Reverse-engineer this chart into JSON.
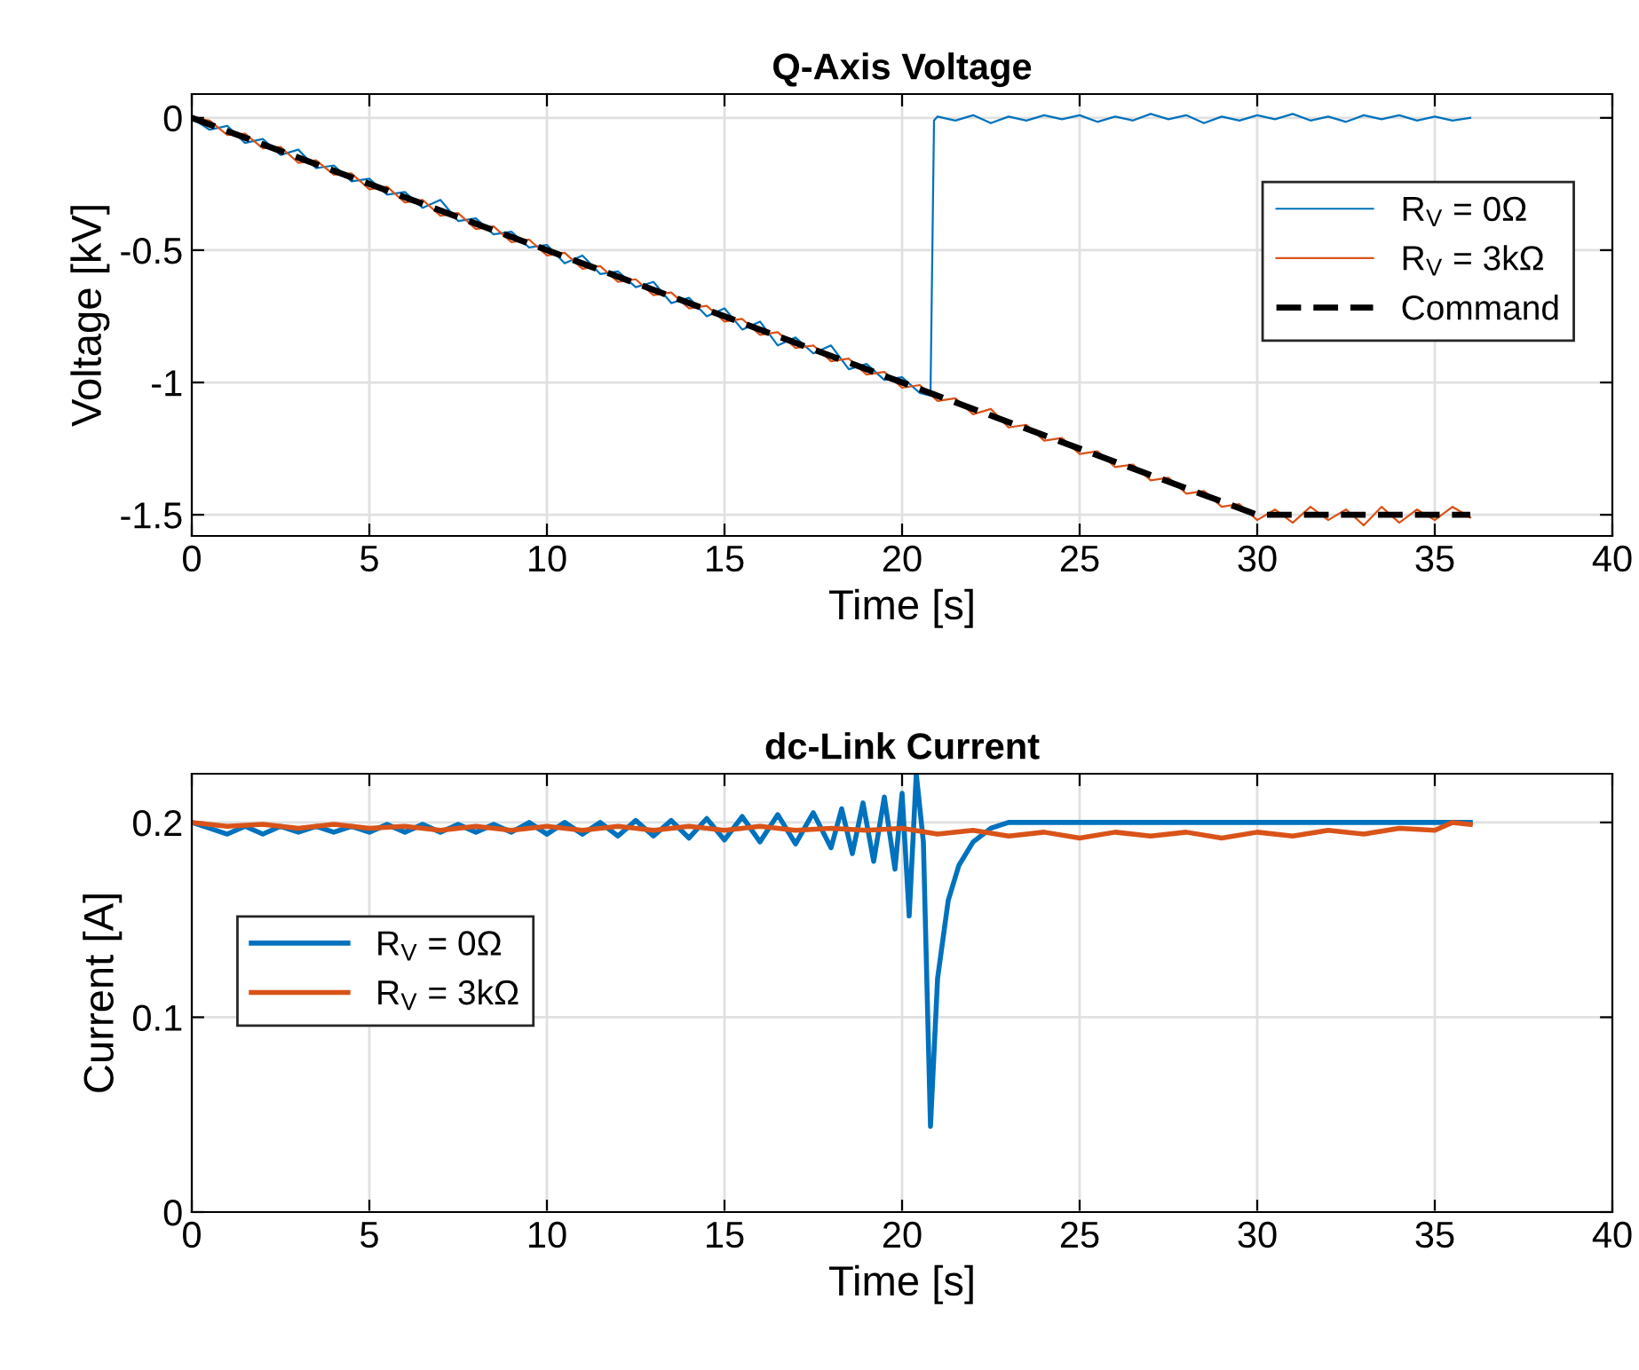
{
  "chart_data": [
    {
      "type": "line",
      "title": "Q-Axis Voltage",
      "xlabel": "Time [s]",
      "ylabel": "Voltage [kV]",
      "xlim": [
        0,
        40
      ],
      "xticks": [
        0,
        5,
        10,
        15,
        20,
        25,
        30,
        35,
        40
      ],
      "ylim": [
        -1.58,
        0.09
      ],
      "yticks": [
        -1.5,
        -1,
        -0.5,
        0
      ],
      "grid": true,
      "legend": "top right",
      "series": [
        {
          "name": "R$_{V}$ = 0Ω",
          "color": "#0072bd",
          "x": [
            0,
            0.5,
            1,
            1.5,
            2,
            2.5,
            3,
            3.5,
            4,
            4.5,
            5,
            5.5,
            6,
            6.5,
            7,
            7.5,
            8,
            8.5,
            9,
            9.5,
            10,
            10.5,
            11,
            11.5,
            12,
            12.5,
            13,
            13.5,
            14,
            14.5,
            15,
            15.5,
            16,
            16.5,
            17,
            17.5,
            18,
            18.5,
            19,
            19.5,
            20,
            20.5,
            20.8,
            20.9,
            21,
            21.5,
            22,
            22.5,
            23,
            23.5,
            24,
            24.5,
            25,
            25.5,
            26,
            26.5,
            27,
            27.5,
            28,
            28.5,
            29,
            29.5,
            30,
            30.5,
            31,
            31.5,
            32,
            32.5,
            33,
            33.5,
            34,
            34.5,
            35,
            35.5,
            36
          ],
          "values": [
            0,
            -0.045,
            -0.03,
            -0.095,
            -0.08,
            -0.14,
            -0.12,
            -0.19,
            -0.18,
            -0.24,
            -0.23,
            -0.29,
            -0.28,
            -0.34,
            -0.31,
            -0.39,
            -0.38,
            -0.44,
            -0.43,
            -0.49,
            -0.48,
            -0.55,
            -0.52,
            -0.59,
            -0.58,
            -0.64,
            -0.62,
            -0.7,
            -0.68,
            -0.75,
            -0.72,
            -0.8,
            -0.77,
            -0.86,
            -0.83,
            -0.89,
            -0.86,
            -0.95,
            -0.93,
            -0.99,
            -0.98,
            -1.04,
            -1.05,
            -0.01,
            0.005,
            -0.01,
            0.01,
            -0.02,
            0.005,
            -0.01,
            0.01,
            -0.005,
            0.01,
            -0.015,
            0.005,
            -0.01,
            0.015,
            -0.005,
            0.01,
            -0.02,
            0.005,
            -0.01,
            0.01,
            -0.005,
            0.015,
            -0.01,
            0.005,
            -0.015,
            0.01,
            -0.005,
            0.01,
            -0.01,
            0.005,
            -0.01,
            0
          ]
        },
        {
          "name": "R$_{V}$ = 3kΩ",
          "color": "#d95319",
          "x": [
            0,
            0.5,
            1,
            1.5,
            2,
            2.5,
            3,
            3.5,
            4,
            4.5,
            5,
            5.5,
            6,
            6.5,
            7,
            7.5,
            8,
            8.5,
            9,
            9.5,
            10,
            10.5,
            11,
            11.5,
            12,
            12.5,
            13,
            13.5,
            14,
            14.5,
            15,
            15.5,
            16,
            16.5,
            17,
            17.5,
            18,
            18.5,
            19,
            19.5,
            20,
            20.5,
            21,
            21.5,
            22,
            22.5,
            23,
            23.5,
            24,
            24.5,
            25,
            25.5,
            26,
            26.5,
            27,
            27.5,
            28,
            28.5,
            29,
            29.5,
            30,
            30.5,
            31,
            31.5,
            32,
            32.5,
            33,
            33.5,
            34,
            34.5,
            35,
            35.5,
            36
          ],
          "values": [
            0,
            -0.01,
            -0.065,
            -0.06,
            -0.115,
            -0.11,
            -0.17,
            -0.16,
            -0.215,
            -0.21,
            -0.27,
            -0.26,
            -0.32,
            -0.31,
            -0.37,
            -0.36,
            -0.42,
            -0.41,
            -0.47,
            -0.46,
            -0.52,
            -0.51,
            -0.57,
            -0.56,
            -0.62,
            -0.61,
            -0.67,
            -0.66,
            -0.72,
            -0.71,
            -0.77,
            -0.76,
            -0.82,
            -0.81,
            -0.87,
            -0.86,
            -0.92,
            -0.91,
            -0.97,
            -0.96,
            -1.02,
            -1.01,
            -1.07,
            -1.06,
            -1.12,
            -1.1,
            -1.17,
            -1.16,
            -1.22,
            -1.21,
            -1.27,
            -1.26,
            -1.32,
            -1.31,
            -1.37,
            -1.36,
            -1.42,
            -1.41,
            -1.47,
            -1.46,
            -1.52,
            -1.48,
            -1.53,
            -1.47,
            -1.52,
            -1.48,
            -1.54,
            -1.47,
            -1.53,
            -1.48,
            -1.52,
            -1.47,
            -1.51
          ]
        },
        {
          "name": "Command",
          "color": "#000000",
          "line_style": "dashed",
          "x": [
            0,
            30,
            36
          ],
          "values": [
            0,
            -1.5,
            -1.5
          ]
        }
      ]
    },
    {
      "type": "line",
      "title": "dc-Link Current",
      "xlabel": "Time [s]",
      "ylabel": "Current [A]",
      "xlim": [
        0,
        40
      ],
      "xticks": [
        0,
        5,
        10,
        15,
        20,
        25,
        30,
        35,
        40
      ],
      "ylim": [
        0,
        0.225
      ],
      "yticks": [
        0,
        0.1,
        0.2
      ],
      "grid": true,
      "legend": "left",
      "series": [
        {
          "name": "R$_{V}$ = 0Ω",
          "color": "#0072bd",
          "x": [
            0,
            0.5,
            1,
            1.5,
            2,
            2.5,
            3,
            3.5,
            4,
            4.5,
            5,
            5.5,
            6,
            6.5,
            7,
            7.5,
            8,
            8.5,
            9,
            9.5,
            10,
            10.5,
            11,
            11.5,
            12,
            12.5,
            13,
            13.5,
            14,
            14.5,
            15,
            15.5,
            16,
            16.5,
            17,
            17.5,
            18,
            18.3,
            18.6,
            18.9,
            19.2,
            19.5,
            19.8,
            20,
            20.2,
            20.4,
            20.6,
            20.8,
            21,
            21.3,
            21.6,
            22,
            22.5,
            23,
            24,
            26,
            28,
            30,
            32,
            34,
            36
          ],
          "values": [
            0.2,
            0.197,
            0.194,
            0.198,
            0.194,
            0.198,
            0.195,
            0.198,
            0.195,
            0.198,
            0.195,
            0.199,
            0.195,
            0.199,
            0.195,
            0.199,
            0.195,
            0.199,
            0.195,
            0.2,
            0.194,
            0.2,
            0.194,
            0.2,
            0.193,
            0.201,
            0.193,
            0.201,
            0.192,
            0.202,
            0.191,
            0.203,
            0.19,
            0.204,
            0.189,
            0.205,
            0.187,
            0.207,
            0.184,
            0.21,
            0.18,
            0.213,
            0.176,
            0.215,
            0.152,
            0.225,
            0.19,
            0.044,
            0.12,
            0.16,
            0.178,
            0.19,
            0.197,
            0.2,
            0.2,
            0.2,
            0.2,
            0.2,
            0.2,
            0.2,
            0.2
          ]
        },
        {
          "name": "R$_{V}$ = 3kΩ",
          "color": "#d95319",
          "x": [
            0,
            1,
            2,
            3,
            4,
            5,
            6,
            7,
            8,
            9,
            10,
            11,
            12,
            13,
            14,
            15,
            16,
            17,
            18,
            19,
            20,
            21,
            22,
            23,
            24,
            25,
            26,
            27,
            28,
            29,
            30,
            31,
            32,
            33,
            34,
            35,
            35.5,
            36
          ],
          "values": [
            0.2,
            0.198,
            0.199,
            0.197,
            0.199,
            0.197,
            0.198,
            0.196,
            0.198,
            0.196,
            0.198,
            0.196,
            0.198,
            0.196,
            0.198,
            0.196,
            0.198,
            0.196,
            0.197,
            0.196,
            0.197,
            0.194,
            0.196,
            0.193,
            0.195,
            0.192,
            0.195,
            0.193,
            0.195,
            0.192,
            0.195,
            0.193,
            0.196,
            0.194,
            0.197,
            0.196,
            0.2,
            0.199
          ]
        }
      ]
    }
  ]
}
